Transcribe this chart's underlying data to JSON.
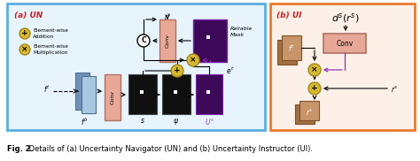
{
  "fig_width": 4.74,
  "fig_height": 1.82,
  "dpi": 100,
  "background_color": "#ffffff",
  "caption_bold": "Fig. 2.",
  "caption_rest": " Details of (a) Uncertainty Navigator (UN) and (b) Uncertainty Instructor (UI).",
  "un_box_color": "#5aaee0",
  "ui_box_color": "#e87a30",
  "un_label": "(a) UN",
  "ui_label": "(b) UI",
  "legend_plus": "Element-wise\nAddition",
  "legend_mul": "Element-wise\nMultiplication",
  "conv_color_un": "#e8a898",
  "conv_color_ui": "#e8a898",
  "black_box_color": "#101010",
  "purple_box_color": "#3d0a5a",
  "blue_box_light": "#a8c8e0",
  "blue_box_dark": "#7090b8",
  "tan_box_color": "#c8956a",
  "tan_box_dark": "#a07040",
  "reliable_mask_label": "Reliable\nMask",
  "circle_fc": "#d8b830",
  "circle_ec": "#a08820",
  "un_bg": "#e8f4fc",
  "ui_bg": "#fdf0e8"
}
